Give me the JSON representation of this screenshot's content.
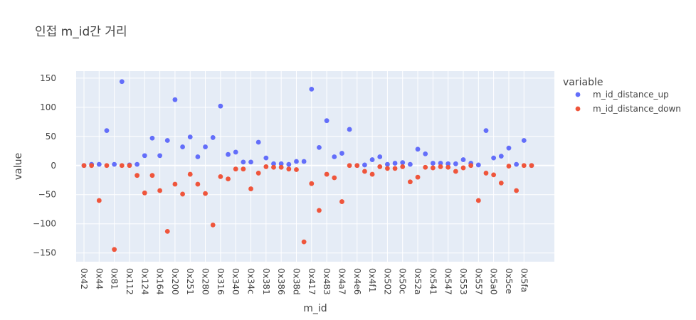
{
  "chart_data": {
    "type": "scatter",
    "title": "인접 m_id간 거리",
    "xlabel": "m_id",
    "ylabel": "value",
    "ylim": [
      -165,
      162
    ],
    "yticks": [
      150,
      100,
      50,
      0,
      -50,
      -100,
      -150
    ],
    "grid": true,
    "legend_title": "variable",
    "legend_position": "right",
    "x_tick_labels": [
      "0x42",
      "0x44",
      "0x81",
      "0x112",
      "0x124",
      "0x164",
      "0x200",
      "0x251",
      "0x280",
      "0x316",
      "0x340",
      "0x34c",
      "0x381",
      "0x386",
      "0x38d",
      "0x417",
      "0x483",
      "0x4a7",
      "0x4e6",
      "0x4f1",
      "0x502",
      "0x50c",
      "0x52a",
      "0x541",
      "0x547",
      "0x553",
      "0x557",
      "0x5a0",
      "0x5ce",
      "0x5fa"
    ],
    "n_points": 60,
    "series": [
      {
        "name": "m_id_distance_up",
        "color": "#636efa",
        "values": [
          0,
          2,
          2,
          60,
          2,
          144,
          1,
          2,
          17,
          47,
          17,
          43,
          113,
          32,
          49,
          15,
          32,
          48,
          102,
          19,
          23,
          6,
          6,
          40,
          13,
          3,
          3,
          2,
          7,
          7,
          131,
          31,
          77,
          15,
          21,
          62,
          0,
          1,
          10,
          15,
          2,
          4,
          5,
          2,
          28,
          20,
          4,
          4,
          3,
          3,
          10,
          4,
          1,
          60,
          13,
          16,
          30,
          2,
          43,
          0
        ]
      },
      {
        "name": "m_id_distance_down",
        "color": "#ef553b",
        "values": [
          0,
          0,
          -60,
          0,
          -144,
          0,
          0,
          -17,
          -47,
          -17,
          -43,
          -113,
          -32,
          -49,
          -15,
          -32,
          -48,
          -102,
          -19,
          -23,
          -6,
          -6,
          -40,
          -13,
          -2,
          -3,
          -3,
          -6,
          -7,
          -131,
          -31,
          -77,
          -15,
          -21,
          -62,
          0,
          0,
          -10,
          -15,
          -2,
          -5,
          -5,
          -2,
          -28,
          -20,
          -3,
          -4,
          -2,
          -3,
          -10,
          -4,
          0,
          -60,
          -13,
          -16,
          -30,
          -1,
          -43,
          0,
          0
        ]
      }
    ]
  }
}
